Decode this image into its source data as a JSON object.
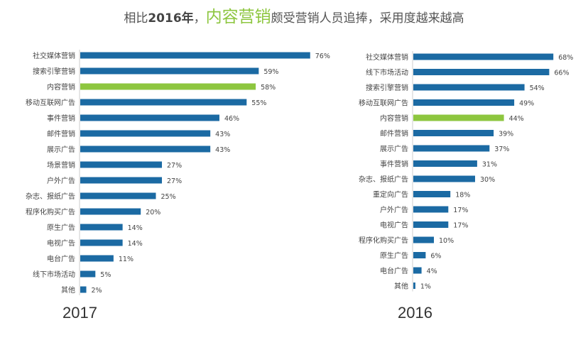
{
  "title": {
    "part1": "相比",
    "year": "2016年",
    "part2": "，",
    "highlight": "内容营销",
    "part3": "颇受营销人员追捧，采用度越来越高"
  },
  "colors": {
    "bar": "#1b6aa3",
    "highlight": "#8dc63f"
  },
  "chart_data": [
    {
      "type": "bar",
      "orientation": "horizontal",
      "title": "2017",
      "categories": [
        "社交媒体营销",
        "搜索引擎营销",
        "内容营销",
        "移动互联网广告",
        "事件营销",
        "邮件营销",
        "展示广告",
        "场景营销",
        "户外广告",
        "杂志、报纸广告",
        "程序化购买广告",
        "原生广告",
        "电视广告",
        "电台广告",
        "线下市场活动",
        "其他"
      ],
      "values": [
        76,
        59,
        58,
        55,
        46,
        43,
        43,
        27,
        27,
        25,
        20,
        14,
        14,
        11,
        5,
        2
      ],
      "highlight": "内容营销",
      "unit": "%"
    },
    {
      "type": "bar",
      "orientation": "horizontal",
      "title": "2016",
      "categories": [
        "社交媒体营销",
        "线下市场活动",
        "搜索引擎营销",
        "移动互联网广告",
        "内容营销",
        "邮件营销",
        "展示广告",
        "事件营销",
        "杂志、报纸广告",
        "重定向广告",
        "户外广告",
        "电视广告",
        "程序化购买广告",
        "原生广告",
        "电台广告",
        "其他"
      ],
      "values": [
        68,
        66,
        54,
        49,
        44,
        39,
        37,
        31,
        30,
        18,
        17,
        17,
        10,
        6,
        4,
        1
      ],
      "highlight": "内容营销",
      "unit": "%"
    }
  ]
}
